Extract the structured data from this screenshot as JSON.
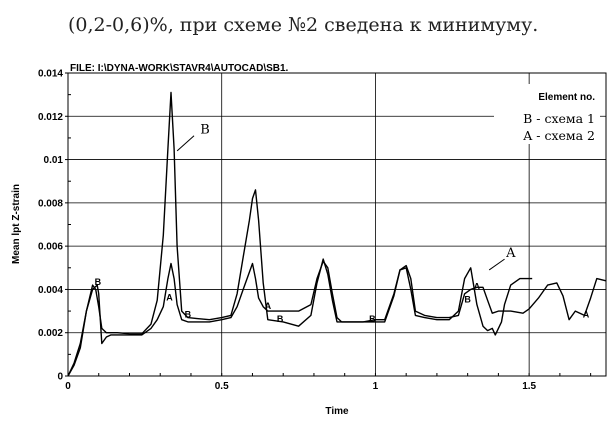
{
  "top_text": "(0,2-0,6)%, при схеме №2 сведена к минимуму.",
  "chart_data": {
    "type": "line",
    "file_label": "FILE: I:\\DYNA-WORK\\STAVR4\\AUTOCAD\\SB1.",
    "xlabel": "Time",
    "ylabel": "Mean lpt Z-strain",
    "xlim": [
      0,
      1.75
    ],
    "ylim": [
      0,
      0.014
    ],
    "x_ticks": [
      "0",
      "0.5",
      "1",
      "1.5"
    ],
    "x_tick_values": [
      0,
      0.5,
      1,
      1.5
    ],
    "y_ticks": [
      "0",
      "0.002",
      "0.004",
      "0.006",
      "0.008",
      "0.01",
      "0.012",
      "0.014"
    ],
    "y_tick_values": [
      0,
      0.002,
      0.004,
      0.006,
      0.008,
      0.01,
      0.012,
      0.014
    ],
    "grid": true,
    "legend": {
      "title": "Element no.",
      "placement": "top-right",
      "entries": [
        "B - схема 1",
        "A - схема 2"
      ]
    },
    "series": [
      {
        "name": "B",
        "legend_label": "B - схема 1",
        "x": [
          0,
          0.02,
          0.04,
          0.06,
          0.08,
          0.09,
          0.1,
          0.11,
          0.125,
          0.14,
          0.16,
          0.2,
          0.24,
          0.27,
          0.29,
          0.31,
          0.325,
          0.335,
          0.345,
          0.355,
          0.37,
          0.39,
          0.42,
          0.46,
          0.5,
          0.53,
          0.55,
          0.57,
          0.59,
          0.6,
          0.61,
          0.62,
          0.635,
          0.65,
          0.7,
          0.75,
          0.79,
          0.81,
          0.83,
          0.845,
          0.86,
          0.875,
          0.89,
          0.92,
          0.96,
          1,
          1.03,
          1.06,
          1.08,
          1.1,
          1.115,
          1.13,
          1.16,
          1.2,
          1.24,
          1.27,
          1.29,
          1.31,
          1.33,
          1.35,
          1.365,
          1.38,
          1.39,
          1.41,
          1.42,
          1.44,
          1.47,
          1.49,
          1.51
        ],
        "y": [
          0,
          0.0005,
          0.0013,
          0.003,
          0.0042,
          0.004,
          0.0032,
          0.0022,
          0.002,
          0.002,
          0.002,
          0.00195,
          0.00195,
          0.0024,
          0.0035,
          0.0065,
          0.0105,
          0.0131,
          0.0105,
          0.006,
          0.003,
          0.0027,
          0.00265,
          0.0026,
          0.0027,
          0.0028,
          0.0038,
          0.0055,
          0.0072,
          0.0082,
          0.0086,
          0.0072,
          0.0043,
          0.0026,
          0.0025,
          0.0023,
          0.0028,
          0.0043,
          0.0054,
          0.0047,
          0.0035,
          0.0025,
          0.0025,
          0.0025,
          0.0025,
          0.0026,
          0.0026,
          0.0038,
          0.0049,
          0.005,
          0.004,
          0.0028,
          0.0027,
          0.0026,
          0.0026,
          0.003,
          0.0045,
          0.005,
          0.0033,
          0.0023,
          0.0021,
          0.0022,
          0.0019,
          0.0025,
          0.0033,
          0.0042,
          0.0045,
          0.0045,
          0.0045
        ]
      },
      {
        "name": "A",
        "legend_label": "A - схема 2",
        "x": [
          0,
          0.02,
          0.04,
          0.06,
          0.08,
          0.095,
          0.1,
          0.11,
          0.125,
          0.14,
          0.16,
          0.2,
          0.24,
          0.27,
          0.29,
          0.31,
          0.325,
          0.335,
          0.345,
          0.355,
          0.37,
          0.39,
          0.42,
          0.46,
          0.5,
          0.53,
          0.55,
          0.57,
          0.59,
          0.6,
          0.61,
          0.62,
          0.635,
          0.65,
          0.7,
          0.75,
          0.79,
          0.81,
          0.83,
          0.845,
          0.86,
          0.875,
          0.89,
          0.92,
          0.96,
          1,
          1.03,
          1.06,
          1.08,
          1.1,
          1.115,
          1.13,
          1.16,
          1.2,
          1.24,
          1.27,
          1.29,
          1.31,
          1.33,
          1.35,
          1.365,
          1.38,
          1.4,
          1.44,
          1.48,
          1.5,
          1.53,
          1.56,
          1.59,
          1.61,
          1.63,
          1.65,
          1.68,
          1.7,
          1.72,
          1.75
        ],
        "y": [
          0,
          0.0006,
          0.0015,
          0.003,
          0.004,
          0.0042,
          0.0038,
          0.0015,
          0.0018,
          0.0019,
          0.0019,
          0.0019,
          0.0019,
          0.0022,
          0.0026,
          0.0032,
          0.0045,
          0.0052,
          0.0045,
          0.0033,
          0.0026,
          0.0025,
          0.0025,
          0.0025,
          0.0026,
          0.0027,
          0.0032,
          0.004,
          0.0048,
          0.0052,
          0.0045,
          0.0036,
          0.0032,
          0.003,
          0.003,
          0.003,
          0.0033,
          0.0045,
          0.0053,
          0.005,
          0.0038,
          0.0027,
          0.0025,
          0.0025,
          0.0025,
          0.0025,
          0.0025,
          0.0037,
          0.0049,
          0.0051,
          0.0045,
          0.003,
          0.0028,
          0.0027,
          0.0027,
          0.0028,
          0.0038,
          0.004,
          0.0041,
          0.0041,
          0.0035,
          0.0029,
          0.003,
          0.003,
          0.0029,
          0.0031,
          0.0036,
          0.0042,
          0.0043,
          0.0037,
          0.0026,
          0.003,
          0.0028,
          0.0036,
          0.0045,
          0.0044
        ]
      }
    ],
    "curve_labels": [
      {
        "text": "B",
        "x": 0.43,
        "y": 0.0112
      },
      {
        "text": "A",
        "x": 1.425,
        "y": 0.0055
      }
    ],
    "markers": [
      {
        "text": "B",
        "x": 0.097,
        "y": 0.0042
      },
      {
        "text": "A",
        "x": 0.33,
        "y": 0.0035
      },
      {
        "text": "B",
        "x": 0.39,
        "y": 0.0027
      },
      {
        "text": "A",
        "x": 0.65,
        "y": 0.0031
      },
      {
        "text": "B",
        "x": 0.69,
        "y": 0.0025
      },
      {
        "text": "B",
        "x": 0.99,
        "y": 0.0025
      },
      {
        "text": "B",
        "x": 1.3,
        "y": 0.0034
      },
      {
        "text": "A",
        "x": 1.33,
        "y": 0.004
      },
      {
        "text": "A",
        "x": 1.685,
        "y": 0.0027
      }
    ]
  }
}
